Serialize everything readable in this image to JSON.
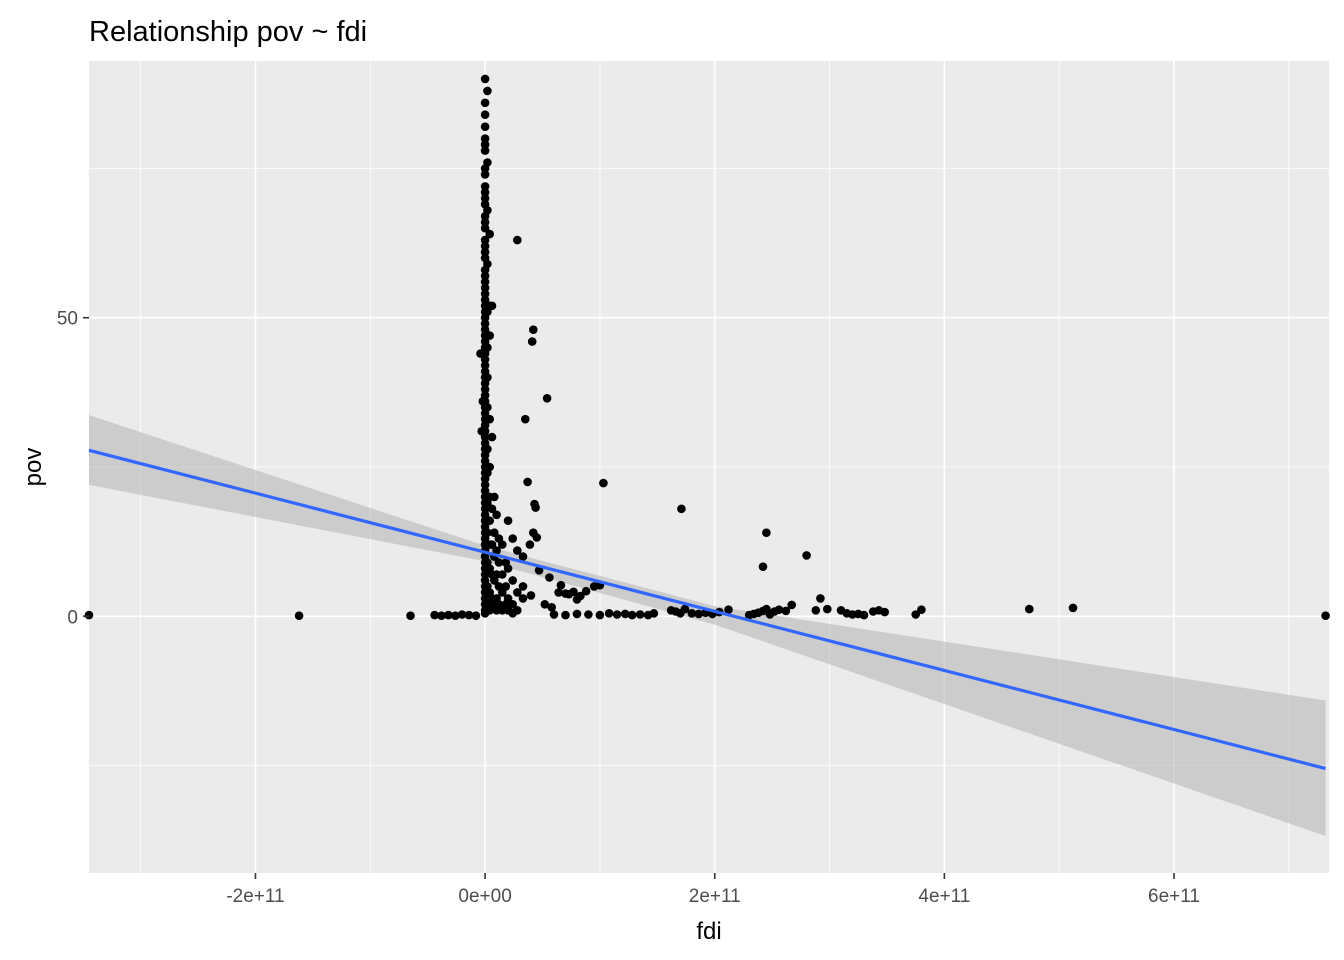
{
  "chart_data": {
    "type": "scatter",
    "title": "Relationship pov ~ fdi",
    "xlabel": "fdi",
    "ylabel": "pov",
    "xlim": [
      -345000000000.0,
      735000000000.0
    ],
    "ylim": [
      -43,
      93
    ],
    "x_ticks": [
      {
        "value": -200000000000.0,
        "label": "-2e+11"
      },
      {
        "value": 0,
        "label": "0e+00"
      },
      {
        "value": 200000000000.0,
        "label": "2e+11"
      },
      {
        "value": 400000000000.0,
        "label": "4e+11"
      },
      {
        "value": 600000000000.0,
        "label": "6e+11"
      }
    ],
    "y_ticks": [
      {
        "value": 0,
        "label": "0"
      },
      {
        "value": 50,
        "label": "50"
      }
    ],
    "x_minor_breaks": [
      -300000000000.0,
      -100000000000.0,
      100000000000.0,
      300000000000.0,
      500000000000.0,
      700000000000.0
    ],
    "y_minor_breaks": [
      -25,
      25,
      75
    ],
    "grid": true,
    "legend": "none",
    "colors": {
      "panel_background": "#ebebeb",
      "grid_line": "#ffffff",
      "point": "#000000",
      "fit_line": "#3366ff",
      "confidence_band": "#b3b3b3"
    },
    "points": [
      [
        -345000000000.0,
        0.2
      ],
      [
        -162000000000.0,
        0.1
      ],
      [
        -65000000000.0,
        0.1
      ],
      [
        -44000000000.0,
        0.2
      ],
      [
        -38000000000.0,
        0.1
      ],
      [
        -32000000000.0,
        0.2
      ],
      [
        -26000000000.0,
        0.1
      ],
      [
        -20000000000.0,
        0.3
      ],
      [
        -14000000000.0,
        0.2
      ],
      [
        -8000000000.0,
        0.1
      ],
      [
        -3000000000.0,
        31
      ],
      [
        -4000000000.0,
        44
      ],
      [
        -2000000000.0,
        36
      ],
      [
        0,
        90
      ],
      [
        0,
        86
      ],
      [
        0,
        84
      ],
      [
        0,
        82
      ],
      [
        0,
        80
      ],
      [
        0,
        79
      ],
      [
        0,
        78
      ],
      [
        0,
        75
      ],
      [
        0,
        74
      ],
      [
        0,
        72
      ],
      [
        0,
        71
      ],
      [
        0,
        70
      ],
      [
        0,
        69
      ],
      [
        0,
        67
      ],
      [
        0,
        66
      ],
      [
        0,
        65
      ],
      [
        0,
        63
      ],
      [
        0,
        62
      ],
      [
        0,
        61
      ],
      [
        0,
        60
      ],
      [
        0,
        58
      ],
      [
        0,
        57
      ],
      [
        0,
        56
      ],
      [
        0,
        55
      ],
      [
        0,
        54
      ],
      [
        0,
        53
      ],
      [
        0,
        52
      ],
      [
        0,
        51
      ],
      [
        0,
        50
      ],
      [
        0,
        49
      ],
      [
        0,
        48
      ],
      [
        0,
        47
      ],
      [
        0,
        46
      ],
      [
        0,
        45
      ],
      [
        0,
        44
      ],
      [
        0,
        43
      ],
      [
        0,
        42
      ],
      [
        0,
        41
      ],
      [
        0,
        40
      ],
      [
        0,
        39
      ],
      [
        0,
        38
      ],
      [
        0,
        37
      ],
      [
        0,
        36
      ],
      [
        0,
        35
      ],
      [
        0,
        34
      ],
      [
        0,
        33
      ],
      [
        0,
        32
      ],
      [
        0,
        31
      ],
      [
        0,
        30
      ],
      [
        0,
        29
      ],
      [
        0,
        28
      ],
      [
        0,
        27
      ],
      [
        0,
        26
      ],
      [
        0,
        25
      ],
      [
        0,
        24
      ],
      [
        0,
        23
      ],
      [
        0,
        22
      ],
      [
        0,
        21
      ],
      [
        0,
        20
      ],
      [
        0,
        19
      ],
      [
        0,
        18
      ],
      [
        0,
        17
      ],
      [
        0,
        16
      ],
      [
        0,
        15
      ],
      [
        0,
        14
      ],
      [
        0,
        13
      ],
      [
        0,
        12
      ],
      [
        0,
        11
      ],
      [
        0,
        10
      ],
      [
        0,
        9
      ],
      [
        0,
        8
      ],
      [
        0,
        7
      ],
      [
        0,
        6
      ],
      [
        0,
        5
      ],
      [
        0,
        4
      ],
      [
        0,
        3
      ],
      [
        0,
        2
      ],
      [
        0,
        1
      ],
      [
        0,
        0.5
      ],
      [
        2000000000.0,
        88
      ],
      [
        2000000000.0,
        76
      ],
      [
        2000000000.0,
        68
      ],
      [
        2000000000.0,
        59
      ],
      [
        2000000000.0,
        51
      ],
      [
        2000000000.0,
        45
      ],
      [
        2000000000.0,
        40
      ],
      [
        2000000000.0,
        35
      ],
      [
        2000000000.0,
        28
      ],
      [
        2000000000.0,
        24
      ],
      [
        2000000000.0,
        19
      ],
      [
        2000000000.0,
        14
      ],
      [
        2000000000.0,
        9
      ],
      [
        2000000000.0,
        5
      ],
      [
        2000000000.0,
        2
      ],
      [
        4000000000.0,
        64
      ],
      [
        4000000000.0,
        52
      ],
      [
        4000000000.0,
        47
      ],
      [
        4000000000.0,
        33
      ],
      [
        4000000000.0,
        25
      ],
      [
        4000000000.0,
        20
      ],
      [
        4000000000.0,
        16
      ],
      [
        4000000000.0,
        12
      ],
      [
        4000000000.0,
        8
      ],
      [
        4000000000.0,
        4
      ],
      [
        4000000000.0,
        1
      ],
      [
        6000000000.0,
        52
      ],
      [
        6000000000.0,
        30
      ],
      [
        6000000000.0,
        18
      ],
      [
        6000000000.0,
        12
      ],
      [
        6000000000.0,
        7
      ],
      [
        6000000000.0,
        3
      ],
      [
        8000000000.0,
        20
      ],
      [
        8000000000.0,
        14
      ],
      [
        8000000000.0,
        10
      ],
      [
        8000000000.0,
        6
      ],
      [
        8000000000.0,
        2
      ],
      [
        10000000000.0,
        17
      ],
      [
        10000000000.0,
        11
      ],
      [
        10000000000.0,
        7
      ],
      [
        10000000000.0,
        3
      ],
      [
        10000000000.0,
        1
      ],
      [
        12000000000.0,
        13
      ],
      [
        12000000000.0,
        9
      ],
      [
        12000000000.0,
        5
      ],
      [
        12000000000.0,
        2
      ],
      [
        15000000000.0,
        12
      ],
      [
        15000000000.0,
        7
      ],
      [
        15000000000.0,
        4
      ],
      [
        15000000000.0,
        1
      ],
      [
        18000000000.0,
        9
      ],
      [
        18000000000.0,
        5
      ],
      [
        18000000000.0,
        2
      ],
      [
        20000000000.0,
        16
      ],
      [
        20000000000.0,
        8
      ],
      [
        20000000000.0,
        3
      ],
      [
        20000000000.0,
        1
      ],
      [
        24000000000.0,
        13
      ],
      [
        24000000000.0,
        6
      ],
      [
        24000000000.0,
        2
      ],
      [
        24000000000.0,
        0.5
      ],
      [
        28000000000.0,
        63
      ],
      [
        28000000000.0,
        11
      ],
      [
        28000000000.0,
        4
      ],
      [
        28000000000.0,
        1
      ],
      [
        33000000000.0,
        10
      ],
      [
        33000000000.0,
        5
      ],
      [
        33000000000.0,
        3
      ],
      [
        35000000000.0,
        33
      ],
      [
        37000000000.0,
        22.5
      ],
      [
        42000000000.0,
        48
      ],
      [
        41000000000.0,
        46
      ],
      [
        43000000000.0,
        18.8
      ],
      [
        44000000000.0,
        18.2
      ],
      [
        42000000000.0,
        14
      ],
      [
        45000000000.0,
        13.2
      ],
      [
        39000000000.0,
        12
      ],
      [
        47000000000.0,
        7.7
      ],
      [
        40000000000.0,
        3.5
      ],
      [
        52000000000.0,
        2
      ],
      [
        54000000000.0,
        36.5
      ],
      [
        56000000000.0,
        6.5
      ],
      [
        58000000000.0,
        1.5
      ],
      [
        64000000000.0,
        4
      ],
      [
        66000000000.0,
        5.2
      ],
      [
        70000000000.0,
        3.8
      ],
      [
        73000000000.0,
        3.7
      ],
      [
        77000000000.0,
        4.1
      ],
      [
        80000000000.0,
        2.8
      ],
      [
        83000000000.0,
        3.4
      ],
      [
        88000000000.0,
        4.2
      ],
      [
        95000000000.0,
        5
      ],
      [
        100000000000.0,
        5.2
      ],
      [
        103000000000.0,
        22.3
      ],
      [
        60000000000.0,
        0.3
      ],
      [
        70000000000.0,
        0.2
      ],
      [
        80000000000.0,
        0.4
      ],
      [
        90000000000.0,
        0.3
      ],
      [
        100000000000.0,
        0.2
      ],
      [
        108000000000.0,
        0.5
      ],
      [
        115000000000.0,
        0.3
      ],
      [
        122000000000.0,
        0.4
      ],
      [
        128000000000.0,
        0.2
      ],
      [
        135000000000.0,
        0.3
      ],
      [
        142000000000.0,
        0.2
      ],
      [
        147000000000.0,
        0.5
      ],
      [
        162000000000.0,
        1
      ],
      [
        166000000000.0,
        0.8
      ],
      [
        170000000000.0,
        0.5
      ],
      [
        174000000000.0,
        1.2
      ],
      [
        180000000000.0,
        0.5
      ],
      [
        186000000000.0,
        0.4
      ],
      [
        192000000000.0,
        0.6
      ],
      [
        198000000000.0,
        0.4
      ],
      [
        204000000000.0,
        0.7
      ],
      [
        212000000000.0,
        1.1
      ],
      [
        171000000000.0,
        18
      ],
      [
        230000000000.0,
        0.2
      ],
      [
        234000000000.0,
        0.4
      ],
      [
        238000000000.0,
        0.6
      ],
      [
        242000000000.0,
        0.9
      ],
      [
        245000000000.0,
        1.2
      ],
      [
        248000000000.0,
        0.3
      ],
      [
        252000000000.0,
        0.8
      ],
      [
        256000000000.0,
        1.1
      ],
      [
        262000000000.0,
        0.9
      ],
      [
        267000000000.0,
        1.9
      ],
      [
        245000000000.0,
        14
      ],
      [
        242000000000.0,
        8.3
      ],
      [
        280000000000.0,
        10.2
      ],
      [
        288000000000.0,
        1
      ],
      [
        292000000000.0,
        3
      ],
      [
        298000000000.0,
        1.2
      ],
      [
        310000000000.0,
        1
      ],
      [
        315000000000.0,
        0.5
      ],
      [
        320000000000.0,
        0.3
      ],
      [
        325000000000.0,
        0.4
      ],
      [
        330000000000.0,
        0.2
      ],
      [
        338000000000.0,
        0.8
      ],
      [
        343000000000.0,
        1.0
      ],
      [
        348000000000.0,
        0.7
      ],
      [
        375000000000.0,
        0.3
      ],
      [
        380000000000.0,
        1.1
      ],
      [
        474000000000.0,
        1.2
      ],
      [
        512000000000.0,
        1.4
      ],
      [
        732000000000.0,
        0.1
      ]
    ],
    "fit_line": {
      "x": [
        -345000000000.0,
        732000000000.0
      ],
      "y": [
        27.8,
        -25.5
      ]
    },
    "confidence_band": {
      "x": [
        -345000000000.0,
        0,
        200000000000.0,
        732000000000.0
      ],
      "upper": [
        33.7,
        11.8,
        1.7,
        -14.1
      ],
      "lower": [
        22.0,
        9.2,
        -1.4,
        -36.8
      ]
    }
  }
}
